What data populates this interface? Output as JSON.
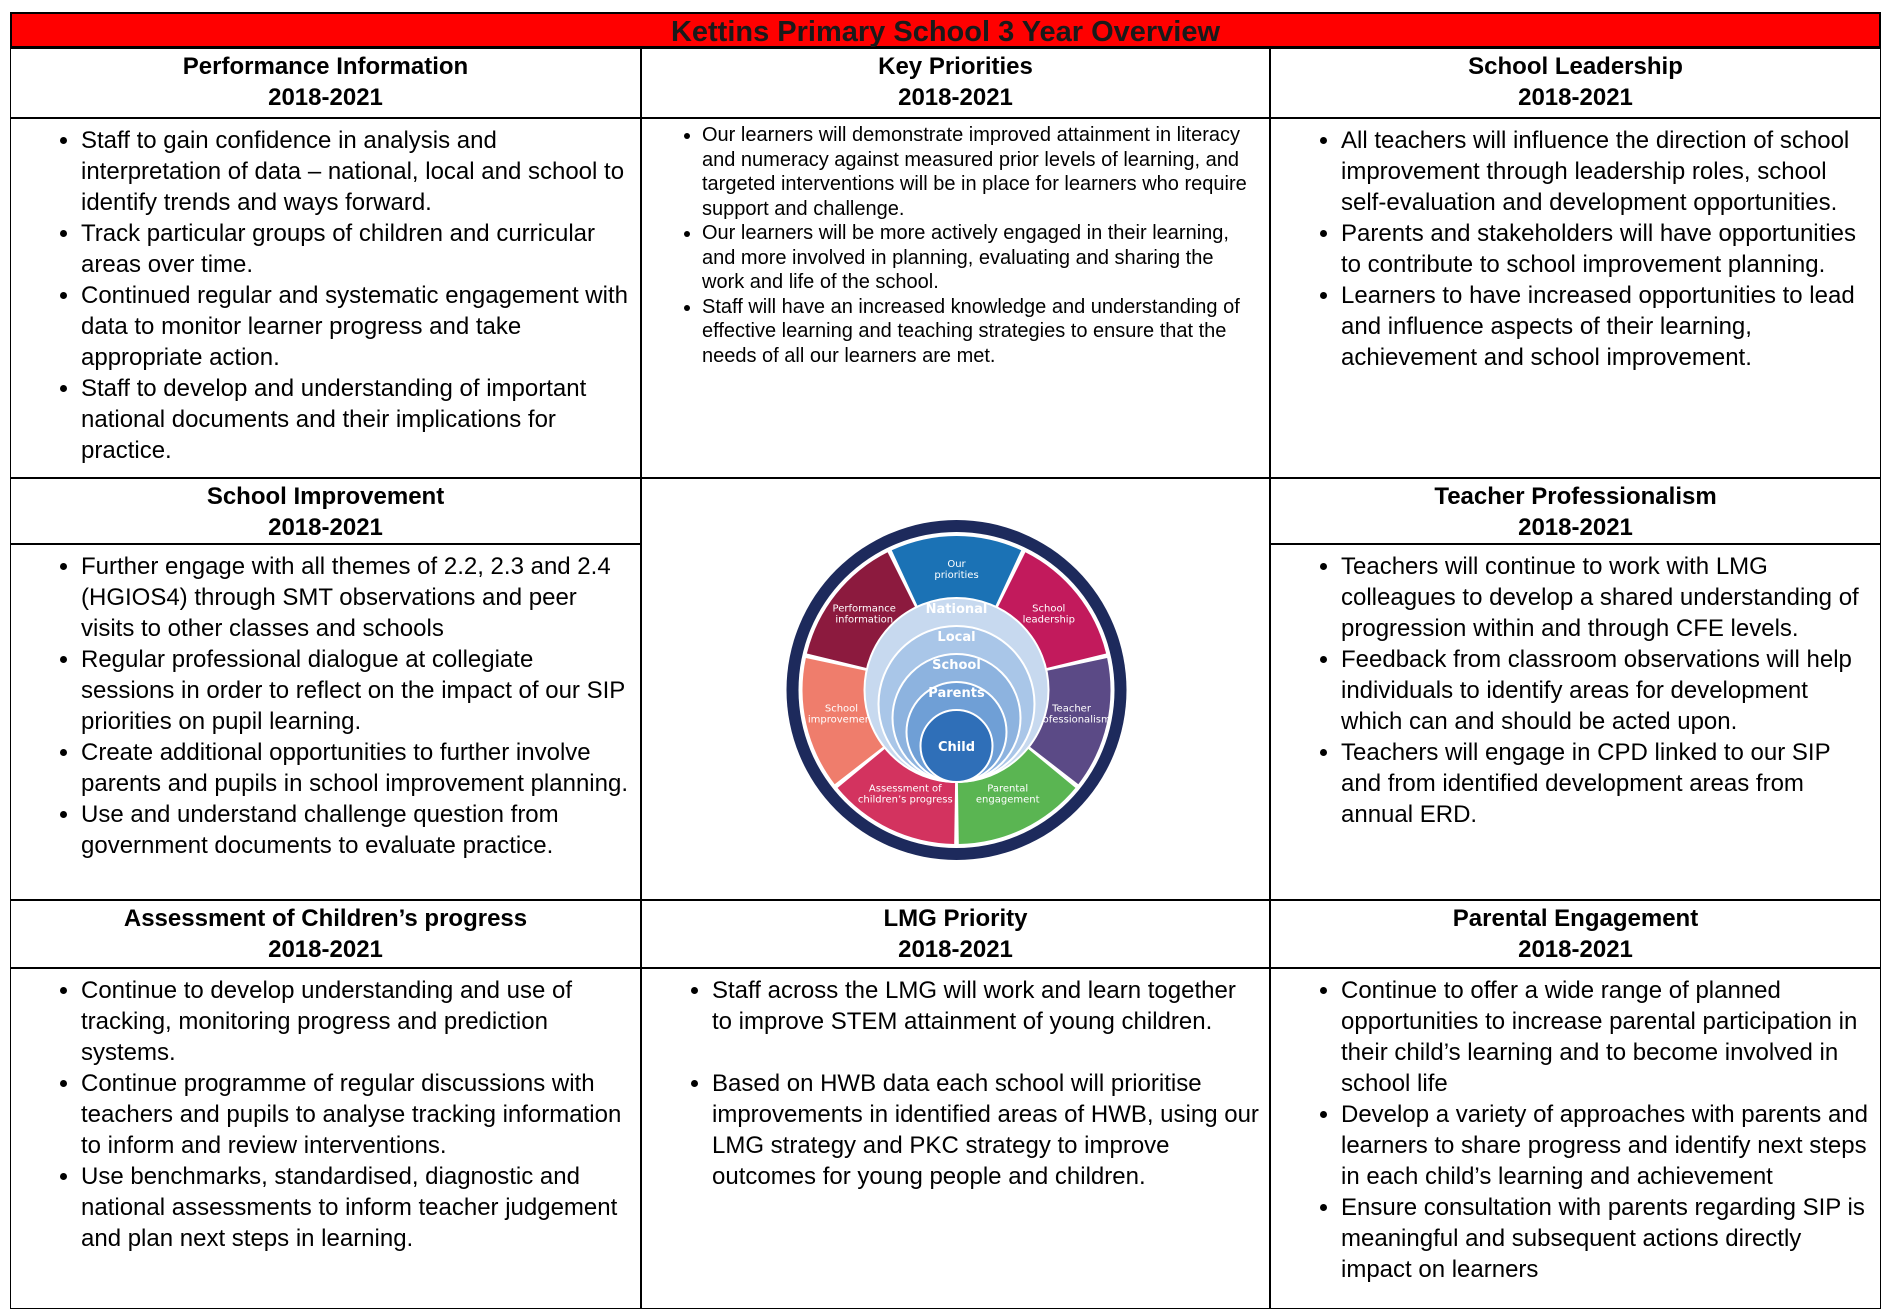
{
  "title": "Kettins Primary School 3 Year Overview",
  "sections": [
    {
      "heading": "Performance Information",
      "years": "2018-2021",
      "bullets": [
        "Staff to gain confidence in analysis and interpretation of data – national, local and school to identify trends and ways forward.",
        "Track particular groups of children and curricular areas over time.",
        "Continued regular and systematic engagement with data to monitor learner progress and take appropriate action.",
        "Staff to develop and understanding of important national documents and their implications for practice."
      ]
    },
    {
      "heading": "Key Priorities",
      "years": "2018-2021",
      "bullets": [
        "Our learners will demonstrate improved attainment in literacy and numeracy against measured prior levels of learning, and targeted interventions will be in place for learners who require support and challenge.",
        "Our learners will be more actively engaged in their learning, and more involved in planning, evaluating and sharing the work and life of the school.",
        "Staff will have an increased knowledge and understanding of effective learning and teaching strategies to ensure that the needs of all our learners are met."
      ]
    },
    {
      "heading": "School Leadership",
      "years": "2018-2021",
      "bullets": [
        "All teachers will influence the direction of school improvement through leadership roles, school self-evaluation and development opportunities.",
        "Parents and stakeholders will have opportunities to contribute to school improvement planning.",
        "Learners to have increased opportunities to lead and influence aspects of their learning, achievement and school improvement."
      ]
    },
    {
      "heading": "School Improvement",
      "years": "2018-2021",
      "bullets": [
        "Further engage with all themes of 2.2, 2.3 and 2.4 (HGIOS4) through SMT observations and peer visits to other classes and schools",
        "Regular professional dialogue at collegiate sessions in order to reflect on the impact of our SIP priorities on pupil learning.",
        "Create additional opportunities to further involve parents and pupils in school improvement planning.",
        "Use and understand challenge question from government documents to evaluate practice."
      ]
    },
    {
      "heading": "Teacher Professionalism",
      "years": "2018-2021",
      "bullets": [
        "Teachers will continue to work with LMG colleagues to develop a shared understanding of progression within and through CFE levels.",
        "Feedback from classroom observations will help individuals to identify areas for development which can and should be acted upon.",
        "Teachers will engage in CPD linked to our SIP and from identified development areas from annual ERD."
      ]
    },
    {
      "heading": "Assessment of Children’s progress",
      "years": "2018-2021",
      "bullets": [
        "Continue to develop understanding and use of tracking, monitoring progress and prediction systems.",
        "Continue programme of regular discussions with teachers and pupils to analyse tracking information to inform and review interventions.",
        "Use benchmarks, standardised, diagnostic and national assessments to inform teacher judgement and plan next steps in learning."
      ]
    },
    {
      "heading": "LMG Priority",
      "years": "2018-2021",
      "bullets": [
        "Staff across the LMG will work and learn together to improve STEM attainment of young children.",
        "Based on HWB data each school will prioritise improvements in identified areas of HWB, using our LMG strategy and PKC strategy to improve outcomes for young people and children."
      ]
    },
    {
      "heading": "Parental Engagement",
      "years": "2018-2021",
      "bullets": [
        "Continue to offer a wide range of planned opportunities to increase parental participation in their child’s learning and to become involved in school life",
        "Develop a variety of approaches with parents and learners to share progress and identify next steps in each child’s learning and achievement",
        "Ensure consultation with parents regarding SIP is meaningful and subsequent actions directly impact on learners"
      ]
    }
  ],
  "diagram": {
    "segments": [
      {
        "label": "Our priorities",
        "color": "#1b72b5"
      },
      {
        "label": "School leadership",
        "color": "#c21a5c"
      },
      {
        "label": "Teacher professionalism",
        "color": "#5b4a86"
      },
      {
        "label": "Parental engagement",
        "color": "#5ab552"
      },
      {
        "label": "Assessment of children’s progress",
        "color": "#d3335f"
      },
      {
        "label": "School improvement",
        "color": "#ef7d6c"
      },
      {
        "label": "Performance information",
        "color": "#8c1a3e"
      }
    ],
    "rings": [
      "National",
      "Local",
      "School",
      "Parents",
      "Child"
    ]
  }
}
